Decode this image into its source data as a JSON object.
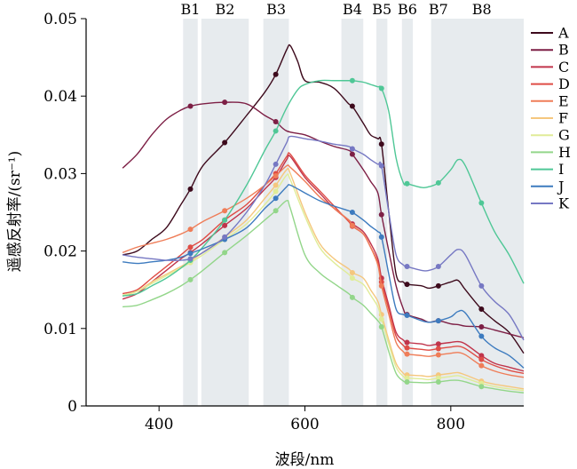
{
  "chart_data": {
    "type": "line",
    "xlabel": "波段/nm",
    "ylabel": "遥感反射率/(sr⁻¹)",
    "xlim": [
      300,
      900
    ],
    "ylim": [
      0,
      0.05
    ],
    "xticks": [
      400,
      600,
      800
    ],
    "yticks": [
      0,
      0.01,
      0.02,
      0.03,
      0.04,
      0.05
    ],
    "ytick_labels": [
      "0",
      "0.01",
      "0.02",
      "0.03",
      "0.04",
      "0.05"
    ],
    "legend_position": "right",
    "bands": [
      {
        "name": "B1",
        "range": [
          433,
          453
        ]
      },
      {
        "name": "B2",
        "range": [
          458,
          523
        ]
      },
      {
        "name": "B3",
        "range": [
          543,
          578
        ]
      },
      {
        "name": "B4",
        "range": [
          650,
          680
        ]
      },
      {
        "name": "B5",
        "range": [
          698,
          713
        ]
      },
      {
        "name": "B6",
        "range": [
          733,
          748
        ]
      },
      {
        "name": "B7",
        "range": [
          773,
          793
        ]
      },
      {
        "name": "B8",
        "range": [
          785,
          900
        ]
      }
    ],
    "band_marker_x": [
      443,
      490,
      560,
      665,
      705,
      740,
      783,
      842
    ],
    "series": [
      {
        "name": "A",
        "color": "#3d0a1c",
        "x": [
          350,
          370,
          390,
          410,
          430,
          443,
          460,
          490,
          520,
          545,
          560,
          575,
          580,
          590,
          600,
          620,
          640,
          660,
          665,
          680,
          690,
          700,
          705,
          715,
          725,
          735,
          740,
          760,
          770,
          783,
          800,
          810,
          820,
          842,
          860,
          880,
          900
        ],
        "y": [
          0.0195,
          0.02,
          0.0215,
          0.023,
          0.026,
          0.028,
          0.031,
          0.034,
          0.0375,
          0.0405,
          0.0428,
          0.046,
          0.0465,
          0.0445,
          0.042,
          0.0418,
          0.041,
          0.039,
          0.0387,
          0.0365,
          0.035,
          0.0345,
          0.0338,
          0.025,
          0.017,
          0.016,
          0.0157,
          0.0155,
          0.0152,
          0.0155,
          0.016,
          0.0162,
          0.015,
          0.0125,
          0.011,
          0.0095,
          0.0068
        ]
      },
      {
        "name": "B",
        "color": "#7d1f45",
        "x": [
          350,
          370,
          390,
          410,
          430,
          443,
          460,
          490,
          520,
          545,
          560,
          575,
          600,
          620,
          640,
          660,
          665,
          680,
          690,
          700,
          705,
          715,
          725,
          735,
          740,
          760,
          770,
          783,
          800,
          810,
          820,
          842,
          860,
          880,
          900
        ],
        "y": [
          0.0307,
          0.0325,
          0.035,
          0.037,
          0.0382,
          0.0387,
          0.039,
          0.0392,
          0.039,
          0.0375,
          0.0367,
          0.0355,
          0.035,
          0.0342,
          0.0335,
          0.033,
          0.0325,
          0.0305,
          0.029,
          0.0275,
          0.0247,
          0.02,
          0.0155,
          0.0125,
          0.0118,
          0.0112,
          0.0108,
          0.011,
          0.0106,
          0.0105,
          0.0103,
          0.0102,
          0.0098,
          0.0093,
          0.0088
        ]
      },
      {
        "name": "C",
        "color": "#c0344b",
        "x": [
          350,
          370,
          390,
          410,
          430,
          443,
          460,
          490,
          520,
          545,
          560,
          575,
          580,
          600,
          620,
          640,
          660,
          665,
          680,
          690,
          700,
          705,
          715,
          725,
          735,
          740,
          760,
          770,
          783,
          800,
          810,
          820,
          842,
          860,
          880,
          900
        ],
        "y": [
          0.0138,
          0.0145,
          0.016,
          0.0175,
          0.019,
          0.0198,
          0.021,
          0.0233,
          0.0255,
          0.028,
          0.0295,
          0.0318,
          0.0322,
          0.0295,
          0.0275,
          0.0255,
          0.024,
          0.0235,
          0.0225,
          0.021,
          0.019,
          0.0165,
          0.013,
          0.0095,
          0.0085,
          0.0082,
          0.008,
          0.0078,
          0.008,
          0.0082,
          0.0083,
          0.008,
          0.0065,
          0.0055,
          0.005,
          0.0045
        ]
      },
      {
        "name": "D",
        "color": "#df4d46",
        "x": [
          350,
          370,
          390,
          410,
          430,
          443,
          460,
          490,
          520,
          545,
          560,
          575,
          580,
          600,
          620,
          640,
          660,
          665,
          680,
          690,
          700,
          705,
          715,
          725,
          735,
          740,
          760,
          770,
          783,
          800,
          810,
          820,
          842,
          860,
          880,
          900
        ],
        "y": [
          0.0145,
          0.015,
          0.0165,
          0.018,
          0.0195,
          0.0205,
          0.0215,
          0.024,
          0.026,
          0.0285,
          0.03,
          0.0322,
          0.0325,
          0.0298,
          0.0278,
          0.0258,
          0.0238,
          0.0232,
          0.0222,
          0.0205,
          0.0185,
          0.016,
          0.0125,
          0.009,
          0.0078,
          0.0075,
          0.0073,
          0.0072,
          0.0074,
          0.0076,
          0.0077,
          0.0074,
          0.006,
          0.0052,
          0.0046,
          0.0042
        ]
      },
      {
        "name": "E",
        "color": "#ef7d58",
        "x": [
          350,
          370,
          390,
          410,
          430,
          443,
          460,
          490,
          520,
          545,
          560,
          575,
          580,
          600,
          620,
          640,
          660,
          665,
          680,
          690,
          700,
          705,
          715,
          725,
          735,
          740,
          760,
          770,
          783,
          800,
          810,
          820,
          842,
          860,
          880,
          900
        ],
        "y": [
          0.0198,
          0.0205,
          0.021,
          0.0215,
          0.0222,
          0.0228,
          0.0238,
          0.0252,
          0.0268,
          0.0285,
          0.0297,
          0.031,
          0.0308,
          0.029,
          0.027,
          0.0255,
          0.024,
          0.0233,
          0.0222,
          0.0205,
          0.0182,
          0.0155,
          0.0118,
          0.0082,
          0.007,
          0.0067,
          0.0065,
          0.0064,
          0.0066,
          0.0068,
          0.0069,
          0.0066,
          0.0052,
          0.0045,
          0.004,
          0.0037
        ]
      },
      {
        "name": "F",
        "color": "#f5c77e",
        "x": [
          350,
          370,
          390,
          410,
          430,
          443,
          460,
          490,
          520,
          545,
          560,
          575,
          580,
          600,
          620,
          640,
          660,
          665,
          680,
          690,
          700,
          705,
          715,
          725,
          735,
          740,
          760,
          770,
          783,
          800,
          810,
          820,
          842,
          860,
          880,
          900
        ],
        "y": [
          0.0142,
          0.0148,
          0.016,
          0.017,
          0.018,
          0.0187,
          0.0198,
          0.0218,
          0.024,
          0.0268,
          0.0285,
          0.0305,
          0.03,
          0.025,
          0.021,
          0.019,
          0.0177,
          0.0172,
          0.0165,
          0.015,
          0.0135,
          0.0118,
          0.0085,
          0.0055,
          0.0042,
          0.004,
          0.0039,
          0.0038,
          0.004,
          0.0042,
          0.0043,
          0.004,
          0.0032,
          0.0028,
          0.0025,
          0.0022
        ]
      },
      {
        "name": "G",
        "color": "#e0ec98",
        "x": [
          350,
          370,
          390,
          410,
          430,
          443,
          460,
          490,
          520,
          545,
          560,
          575,
          580,
          600,
          620,
          640,
          660,
          665,
          680,
          690,
          700,
          705,
          715,
          725,
          735,
          740,
          760,
          770,
          783,
          800,
          810,
          820,
          842,
          860,
          880,
          900
        ],
        "y": [
          0.0143,
          0.0148,
          0.0158,
          0.0168,
          0.0178,
          0.0185,
          0.0195,
          0.0215,
          0.0235,
          0.026,
          0.0277,
          0.0298,
          0.0292,
          0.0245,
          0.0205,
          0.0185,
          0.017,
          0.0165,
          0.0157,
          0.0143,
          0.0128,
          0.0112,
          0.008,
          0.005,
          0.0038,
          0.0036,
          0.0035,
          0.0034,
          0.0036,
          0.0038,
          0.0039,
          0.0036,
          0.0029,
          0.0025,
          0.0022,
          0.002
        ]
      },
      {
        "name": "H",
        "color": "#93d68a",
        "x": [
          350,
          370,
          390,
          410,
          430,
          443,
          460,
          490,
          520,
          545,
          560,
          575,
          580,
          600,
          620,
          640,
          660,
          665,
          680,
          690,
          700,
          705,
          715,
          725,
          735,
          740,
          760,
          770,
          783,
          800,
          810,
          820,
          842,
          860,
          880,
          900
        ],
        "y": [
          0.0128,
          0.013,
          0.0137,
          0.0145,
          0.0155,
          0.0163,
          0.0175,
          0.0198,
          0.022,
          0.024,
          0.0252,
          0.0265,
          0.0255,
          0.0195,
          0.0172,
          0.0158,
          0.0145,
          0.014,
          0.013,
          0.012,
          0.011,
          0.0102,
          0.007,
          0.0042,
          0.0032,
          0.0031,
          0.003,
          0.003,
          0.0031,
          0.0033,
          0.0033,
          0.0031,
          0.0025,
          0.0022,
          0.0019,
          0.0017
        ]
      },
      {
        "name": "I",
        "color": "#4fc796",
        "x": [
          350,
          370,
          390,
          410,
          430,
          443,
          460,
          490,
          520,
          545,
          560,
          575,
          590,
          600,
          620,
          640,
          660,
          665,
          680,
          690,
          700,
          705,
          715,
          725,
          735,
          740,
          760,
          770,
          783,
          800,
          810,
          820,
          842,
          860,
          880,
          900
        ],
        "y": [
          0.0142,
          0.0145,
          0.0155,
          0.0165,
          0.0178,
          0.0188,
          0.0205,
          0.024,
          0.0285,
          0.033,
          0.0355,
          0.0385,
          0.0408,
          0.0415,
          0.042,
          0.042,
          0.042,
          0.042,
          0.0418,
          0.0415,
          0.0412,
          0.041,
          0.038,
          0.032,
          0.0288,
          0.0287,
          0.0282,
          0.0283,
          0.0288,
          0.0305,
          0.0318,
          0.031,
          0.0262,
          0.0225,
          0.0195,
          0.0158
        ]
      },
      {
        "name": "J",
        "color": "#3d7bbf",
        "x": [
          350,
          370,
          390,
          410,
          430,
          443,
          460,
          490,
          520,
          545,
          560,
          575,
          580,
          600,
          620,
          640,
          660,
          665,
          680,
          690,
          700,
          705,
          715,
          725,
          735,
          740,
          760,
          770,
          783,
          800,
          810,
          820,
          842,
          860,
          880,
          900
        ],
        "y": [
          0.0186,
          0.0184,
          0.0186,
          0.0188,
          0.0192,
          0.0197,
          0.0203,
          0.0215,
          0.023,
          0.0255,
          0.0268,
          0.0283,
          0.0285,
          0.0275,
          0.0265,
          0.0258,
          0.0252,
          0.025,
          0.024,
          0.0232,
          0.0225,
          0.0218,
          0.017,
          0.0125,
          0.0118,
          0.0117,
          0.011,
          0.0108,
          0.011,
          0.0115,
          0.0122,
          0.012,
          0.009,
          0.0075,
          0.0065,
          0.0049
        ]
      },
      {
        "name": "K",
        "color": "#7678c3",
        "x": [
          350,
          370,
          390,
          410,
          430,
          443,
          460,
          490,
          520,
          545,
          560,
          575,
          580,
          600,
          620,
          640,
          660,
          665,
          680,
          690,
          700,
          705,
          715,
          725,
          735,
          740,
          760,
          770,
          783,
          800,
          810,
          820,
          842,
          860,
          880,
          900
        ],
        "y": [
          0.0195,
          0.0192,
          0.019,
          0.0188,
          0.0188,
          0.019,
          0.0198,
          0.0218,
          0.025,
          0.0285,
          0.0312,
          0.034,
          0.0348,
          0.0345,
          0.0342,
          0.0338,
          0.0335,
          0.0332,
          0.0325,
          0.0318,
          0.0312,
          0.031,
          0.025,
          0.0195,
          0.0182,
          0.018,
          0.0175,
          0.0175,
          0.018,
          0.0195,
          0.0202,
          0.0195,
          0.0155,
          0.0135,
          0.0118,
          0.0085
        ]
      }
    ]
  }
}
